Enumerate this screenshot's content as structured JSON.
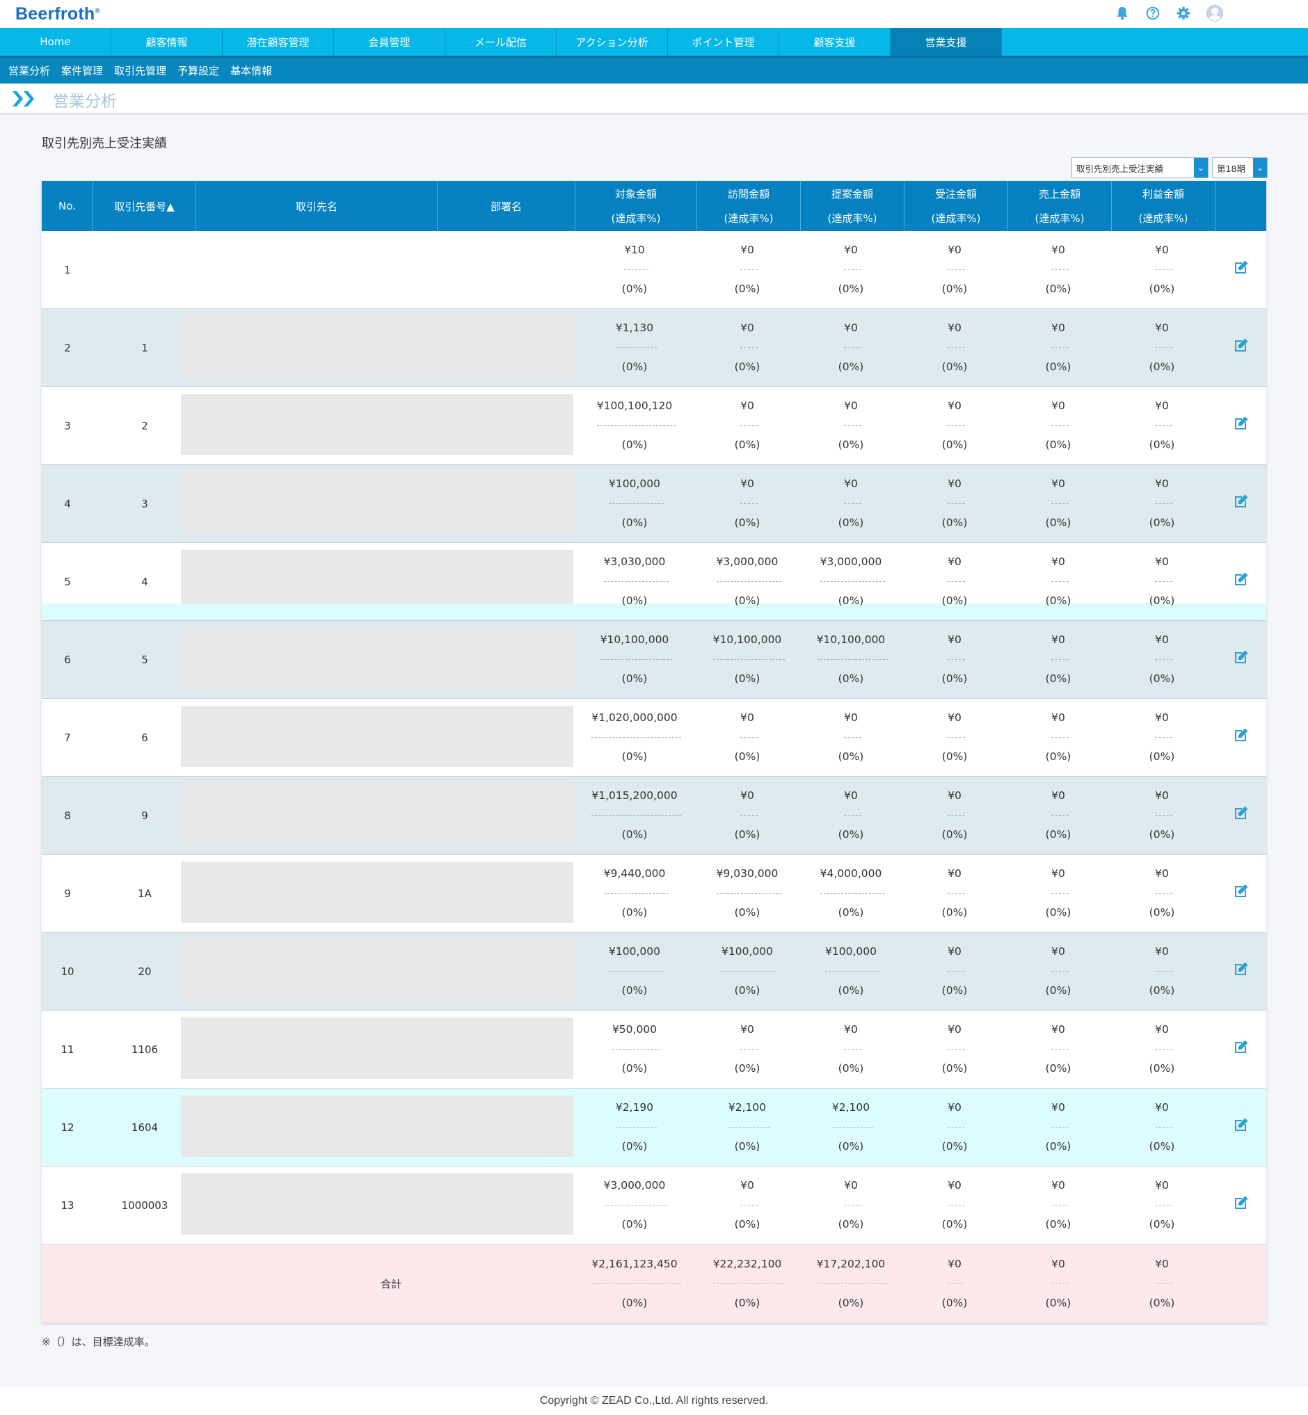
{
  "app": {
    "logo": "Beerfroth",
    "logo_mark": "®"
  },
  "header_icons": [
    "bell-icon",
    "help-icon",
    "gear-icon",
    "user-icon"
  ],
  "main_nav": [
    "Home",
    "顧客情報",
    "潜在顧客管理",
    "会員管理",
    "メール配信",
    "アクション分析",
    "ポイント管理",
    "顧客支援",
    "営業支援"
  ],
  "main_nav_active": 8,
  "sub_nav": [
    "営業分析",
    "案件管理",
    "取引先管理",
    "予算設定",
    "基本情報"
  ],
  "page_title": "営業分析",
  "section_title": "取引先別売上受注実績",
  "report_select": "取引先別売上受注実績",
  "period_select": "第18期",
  "columns": {
    "no": "No.",
    "code": "取引先番号▲",
    "name": "取引先名",
    "dept": "部署名",
    "rate": "(達成率%)",
    "amounts": [
      "対象金額",
      "訪問金額",
      "提案金額",
      "受注金額",
      "売上金額",
      "利益金額"
    ]
  },
  "rows": [
    {
      "no": "1",
      "code": "",
      "amounts": [
        "¥10",
        "¥0",
        "¥0",
        "¥0",
        "¥0",
        "¥0"
      ]
    },
    {
      "no": "2",
      "code": "1",
      "amounts": [
        "¥1,130",
        "¥0",
        "¥0",
        "¥0",
        "¥0",
        "¥0"
      ]
    },
    {
      "no": "3",
      "code": "2",
      "amounts": [
        "¥100,100,120",
        "¥0",
        "¥0",
        "¥0",
        "¥0",
        "¥0"
      ]
    },
    {
      "no": "4",
      "code": "3",
      "amounts": [
        "¥100,000",
        "¥0",
        "¥0",
        "¥0",
        "¥0",
        "¥0"
      ]
    },
    {
      "no": "5",
      "code": "4",
      "amounts": [
        "¥3,030,000",
        "¥3,000,000",
        "¥3,000,000",
        "¥0",
        "¥0",
        "¥0"
      ]
    },
    {
      "no": "6",
      "code": "5",
      "amounts": [
        "¥10,100,000",
        "¥10,100,000",
        "¥10,100,000",
        "¥0",
        "¥0",
        "¥0"
      ]
    },
    {
      "no": "7",
      "code": "6",
      "amounts": [
        "¥1,020,000,000",
        "¥0",
        "¥0",
        "¥0",
        "¥0",
        "¥0"
      ]
    },
    {
      "no": "8",
      "code": "9",
      "amounts": [
        "¥1,015,200,000",
        "¥0",
        "¥0",
        "¥0",
        "¥0",
        "¥0"
      ]
    },
    {
      "no": "9",
      "code": "1A",
      "amounts": [
        "¥9,440,000",
        "¥9,030,000",
        "¥4,000,000",
        "¥0",
        "¥0",
        "¥0"
      ]
    },
    {
      "no": "10",
      "code": "20",
      "amounts": [
        "¥100,000",
        "¥100,000",
        "¥100,000",
        "¥0",
        "¥0",
        "¥0"
      ]
    },
    {
      "no": "11",
      "code": "1106",
      "amounts": [
        "¥50,000",
        "¥0",
        "¥0",
        "¥0",
        "¥0",
        "¥0"
      ]
    },
    {
      "no": "12",
      "code": "1604",
      "amounts": [
        "¥2,190",
        "¥2,100",
        "¥2,100",
        "¥0",
        "¥0",
        "¥0"
      ]
    },
    {
      "no": "13",
      "code": "1000003",
      "amounts": [
        "¥3,000,000",
        "¥0",
        "¥0",
        "¥0",
        "¥0",
        "¥0"
      ]
    }
  ],
  "rate_value": "(0%)",
  "total": {
    "label": "合計",
    "amounts": [
      "¥2,161,123,450",
      "¥22,232,100",
      "¥17,202,100",
      "¥0",
      "¥0",
      "¥0"
    ]
  },
  "note": "※（）は、目標達成率。",
  "footer": "Copyright © ZEAD Co.,Ltd. All rights reserved.",
  "colors": {
    "nav": "#06b7e8",
    "nav_active": "#0482b6",
    "subnav": "#0787bd",
    "table_header": "#0581c1",
    "row_alt": "#dfeaef",
    "row_highlight": "#dcfcfd",
    "total_row": "#fde8ec",
    "edit_icon": "#2aa1d6"
  }
}
